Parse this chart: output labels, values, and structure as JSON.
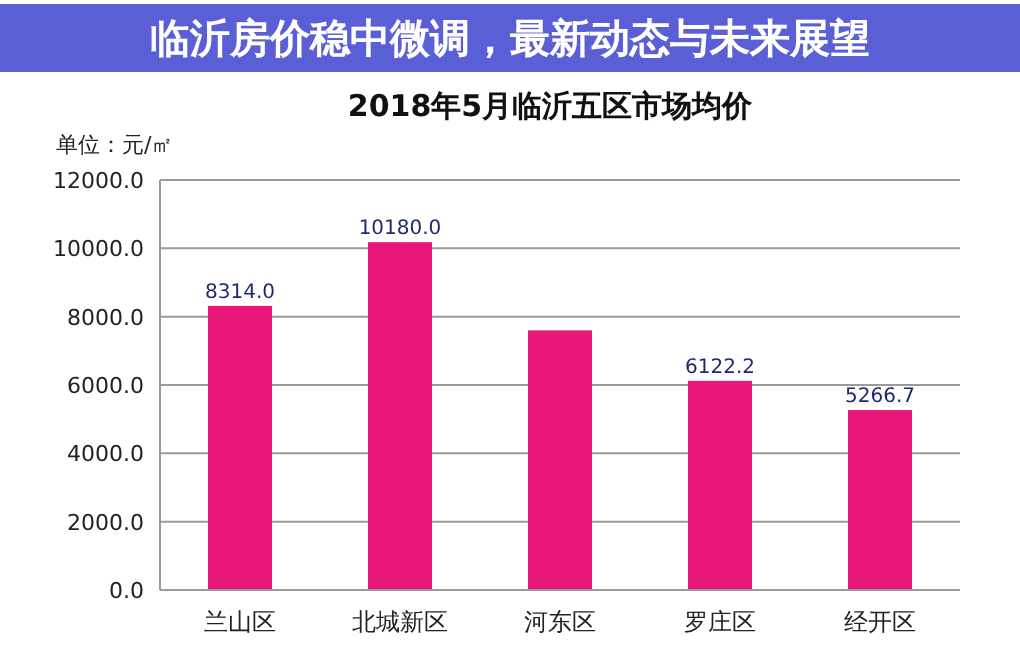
{
  "chart_data": {
    "type": "bar",
    "title": "2018年5月临沂五区市场均价",
    "ylabel": "单位：元/㎡",
    "annotations": [
      "临沂房价稳中微调，最新动态与未来展望"
    ],
    "categories": [
      "兰山区",
      "北城新区",
      "河东区",
      "罗庄区",
      "经开区"
    ],
    "values": [
      8314.0,
      10180.0,
      7600,
      6122.2,
      5266.7
    ],
    "value_labels": [
      "8314.0",
      "10180.0",
      null,
      "6122.2",
      "5266.7"
    ],
    "color": "#e8187a",
    "ylim": [
      0,
      12000
    ],
    "yticks": [
      {
        "value": 0,
        "label": "0.0"
      },
      {
        "value": 2000,
        "label": "2000.0"
      },
      {
        "value": 4000,
        "label": "4000.0"
      },
      {
        "value": 6000,
        "label": "6000.0"
      },
      {
        "value": 8000,
        "label": "8000.0"
      },
      {
        "value": 10000,
        "label": "10000.0"
      },
      {
        "value": 12000,
        "label": "12000.0"
      }
    ],
    "grid": "y"
  }
}
